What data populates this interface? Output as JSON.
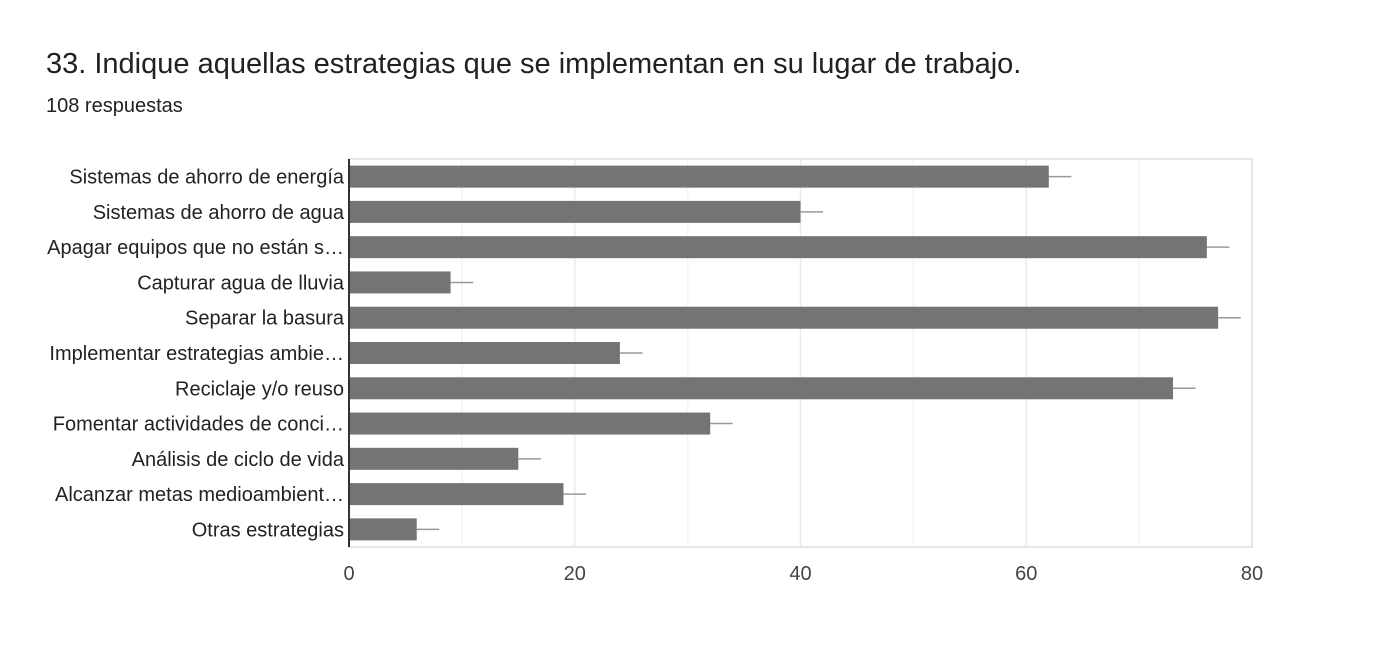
{
  "question": {
    "title": "33. Indique aquellas estrategias que se implementan en su lugar de trabajo.",
    "responses": "108 respuestas"
  },
  "chart_data": {
    "type": "bar",
    "orientation": "horizontal",
    "categories": [
      "Sistemas de ahorro de energía",
      "Sistemas de ahorro de agua",
      "Apagar equipos que no están s…",
      "Capturar agua de lluvia",
      "Separar la basura",
      "Implementar estrategias ambie…",
      "Reciclaje y/o reuso",
      "Fomentar actividades de conci…",
      "Análisis de ciclo de vida",
      "Alcanzar metas medioambient…",
      "Otras estrategias"
    ],
    "values": [
      62,
      40,
      76,
      9,
      77,
      24,
      73,
      32,
      15,
      19,
      6
    ],
    "error": 2,
    "xlim": [
      0,
      80
    ],
    "xticks": [
      0,
      20,
      40,
      60,
      80
    ],
    "grid": true,
    "legend": "none",
    "colors": {
      "bar": "#747474",
      "axis": "#333333",
      "grid": "#ebebeb",
      "error": "#999999"
    }
  }
}
